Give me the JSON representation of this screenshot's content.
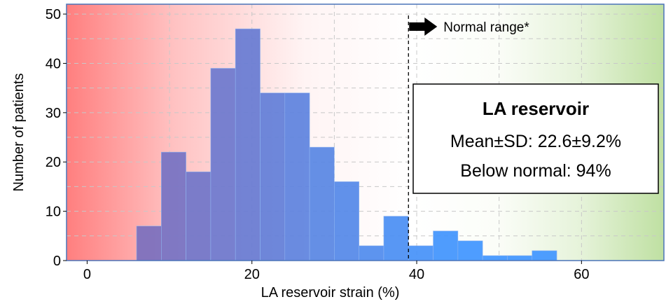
{
  "chart_data": {
    "type": "bar",
    "subtype": "histogram",
    "xlabel": "LA reservoir strain (%)",
    "ylabel": "Number of patients",
    "xlim": [
      -2.5,
      70
    ],
    "ylim": [
      0,
      52
    ],
    "x_ticks": [
      0,
      20,
      40,
      60
    ],
    "y_ticks": [
      0,
      10,
      20,
      30,
      40,
      50
    ],
    "grid": true,
    "bin_width": 3,
    "bins": [
      {
        "start": 6,
        "end": 9,
        "value": 7
      },
      {
        "start": 9,
        "end": 12,
        "value": 22
      },
      {
        "start": 12,
        "end": 15,
        "value": 18
      },
      {
        "start": 15,
        "end": 18,
        "value": 39
      },
      {
        "start": 18,
        "end": 21,
        "value": 47
      },
      {
        "start": 21,
        "end": 24,
        "value": 34
      },
      {
        "start": 24,
        "end": 27,
        "value": 34
      },
      {
        "start": 27,
        "end": 30,
        "value": 23
      },
      {
        "start": 30,
        "end": 33,
        "value": 16
      },
      {
        "start": 33,
        "end": 36,
        "value": 3
      },
      {
        "start": 36,
        "end": 39,
        "value": 9
      },
      {
        "start": 39,
        "end": 42,
        "value": 3
      },
      {
        "start": 42,
        "end": 45,
        "value": 6
      },
      {
        "start": 45,
        "end": 48,
        "value": 4
      },
      {
        "start": 48,
        "end": 51,
        "value": 1
      },
      {
        "start": 51,
        "end": 54,
        "value": 1
      },
      {
        "start": 54,
        "end": 57,
        "value": 2
      }
    ],
    "threshold": {
      "x": 39,
      "label": "Normal range*"
    },
    "info_box": {
      "title": "LA reservoir",
      "line1": "Mean±SD: 22.6±9.2%",
      "line2": "Below normal: 94%"
    },
    "colors": {
      "bar_start": "#7a6fbe",
      "bar_end": "#3f95ff",
      "background_low": "#ff7f7f",
      "background_high": "#b8dc9a",
      "frame": "#4a73b8"
    }
  }
}
